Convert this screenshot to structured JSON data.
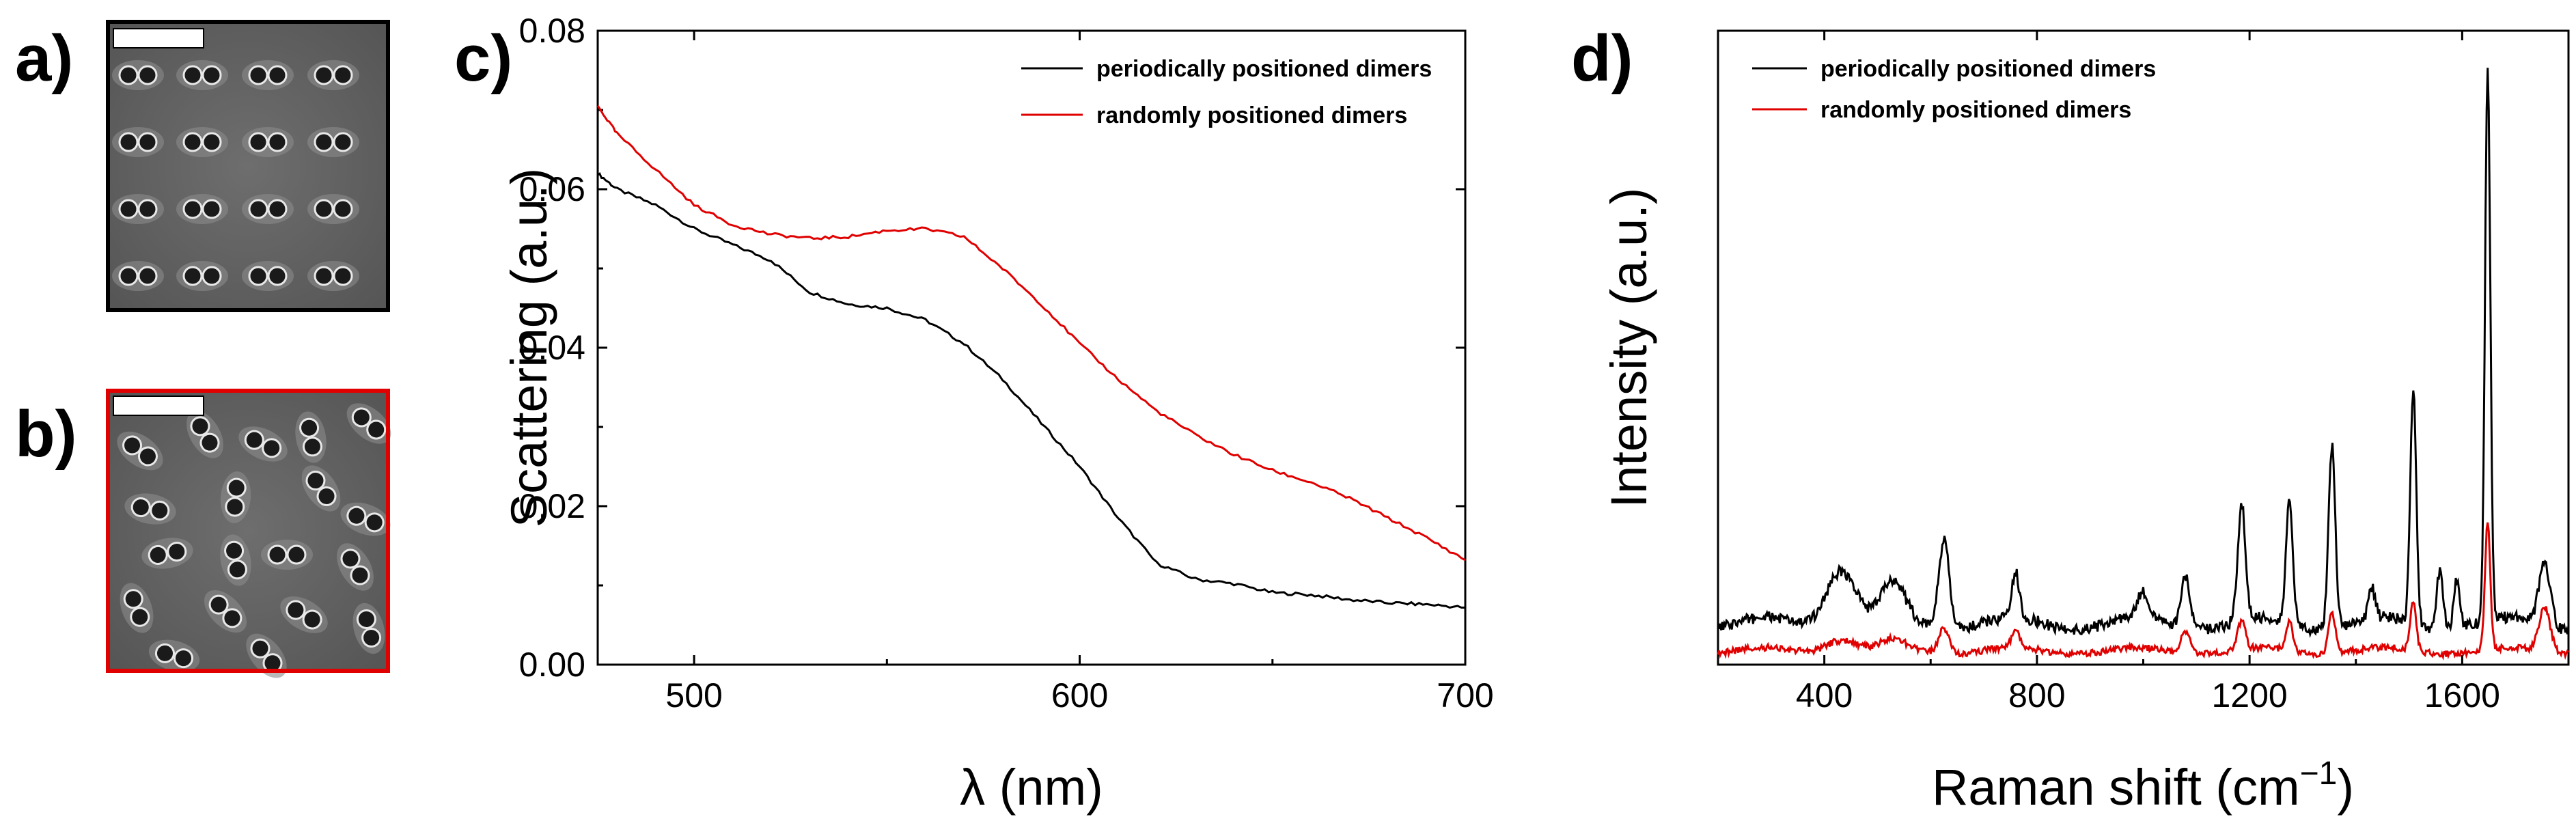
{
  "panels": {
    "a": {
      "label": "a)"
    },
    "b": {
      "label": "b)"
    },
    "c": {
      "label": "c)"
    },
    "d": {
      "label": "d)"
    }
  },
  "images": {
    "a_border_color": "#000000",
    "b_border_color": "#e00000",
    "a_description": "periodic-dimers-sem",
    "b_description": "random-dimers-sem"
  },
  "colors": {
    "periodic": "#000000",
    "random": "#e00000"
  },
  "chart_data": [
    {
      "type": "line",
      "panel": "c",
      "xlabel": "λ (nm)",
      "ylabel": "Scattering (a.u.)",
      "xlim": [
        475,
        700
      ],
      "ylim": [
        0.0,
        0.08
      ],
      "xticks": [
        500,
        600,
        700
      ],
      "yticks": [
        0.0,
        0.02,
        0.04,
        0.06,
        0.08
      ],
      "ytick_labels": [
        "0.00",
        "0.02",
        "0.04",
        "0.06",
        "0.08"
      ],
      "legend": [
        "periodically positioned dimers",
        "randomly positioned dimers"
      ],
      "series": [
        {
          "name": "periodically positioned dimers",
          "color": "#000000",
          "x": [
            475,
            480,
            490,
            500,
            510,
            520,
            530,
            540,
            550,
            560,
            570,
            580,
            590,
            600,
            610,
            620,
            630,
            640,
            650,
            660,
            670,
            680,
            690,
            700
          ],
          "y": [
            0.062,
            0.06,
            0.058,
            0.055,
            0.053,
            0.051,
            0.047,
            0.0455,
            0.045,
            0.0435,
            0.0405,
            0.036,
            0.0305,
            0.025,
            0.0185,
            0.0128,
            0.0108,
            0.0102,
            0.0091,
            0.0088,
            0.0082,
            0.0078,
            0.0076,
            0.0072
          ]
        },
        {
          "name": "randomly positioned dimers",
          "color": "#e00000",
          "x": [
            475,
            480,
            490,
            500,
            510,
            520,
            530,
            540,
            550,
            560,
            570,
            580,
            590,
            600,
            610,
            620,
            630,
            640,
            650,
            660,
            670,
            680,
            690,
            700
          ],
          "y": [
            0.0705,
            0.067,
            0.0625,
            0.058,
            0.0555,
            0.0543,
            0.0538,
            0.054,
            0.0548,
            0.055,
            0.054,
            0.05,
            0.0455,
            0.0405,
            0.036,
            0.032,
            0.029,
            0.0265,
            0.0245,
            0.023,
            0.021,
            0.0185,
            0.016,
            0.0132
          ]
        }
      ]
    },
    {
      "type": "line",
      "panel": "d",
      "xlabel": "Raman shift (cm−1)",
      "xlabel_base": "Raman shift (cm",
      "xlabel_sup": "−1",
      "xlabel_close": ")",
      "ylabel": "Intensity (a.u.)",
      "xlim": [
        200,
        1800
      ],
      "ylim": [
        0,
        1.0
      ],
      "xticks": [
        400,
        800,
        1200,
        1600
      ],
      "legend": [
        "periodically positioned dimers",
        "randomly positioned dimers"
      ],
      "series": [
        {
          "name": "periodically positioned dimers",
          "color": "#000000",
          "baseline": 0.065,
          "peaks": [
            [
              430,
              0.09,
              40
            ],
            [
              530,
              0.06,
              30
            ],
            [
              625,
              0.14,
              14
            ],
            [
              760,
              0.07,
              10
            ],
            [
              1000,
              0.04,
              15
            ],
            [
              1080,
              0.08,
              12
            ],
            [
              1185,
              0.185,
              10
            ],
            [
              1275,
              0.19,
              9
            ],
            [
              1355,
              0.29,
              9
            ],
            [
              1430,
              0.05,
              9
            ],
            [
              1508,
              0.37,
              8
            ],
            [
              1558,
              0.09,
              9
            ],
            [
              1590,
              0.08,
              8
            ],
            [
              1648,
              0.88,
              7
            ],
            [
              1755,
              0.1,
              15
            ]
          ]
        },
        {
          "name": "randomly positioned dimers",
          "color": "#e00000",
          "baseline": 0.022,
          "peaks": [
            [
              430,
              0.02,
              40
            ],
            [
              530,
              0.015,
              30
            ],
            [
              625,
              0.04,
              14
            ],
            [
              760,
              0.03,
              10
            ],
            [
              1080,
              0.035,
              12
            ],
            [
              1185,
              0.045,
              10
            ],
            [
              1275,
              0.045,
              9
            ],
            [
              1355,
              0.065,
              9
            ],
            [
              1508,
              0.075,
              8
            ],
            [
              1648,
              0.2,
              7
            ],
            [
              1755,
              0.07,
              15
            ]
          ]
        }
      ]
    }
  ]
}
